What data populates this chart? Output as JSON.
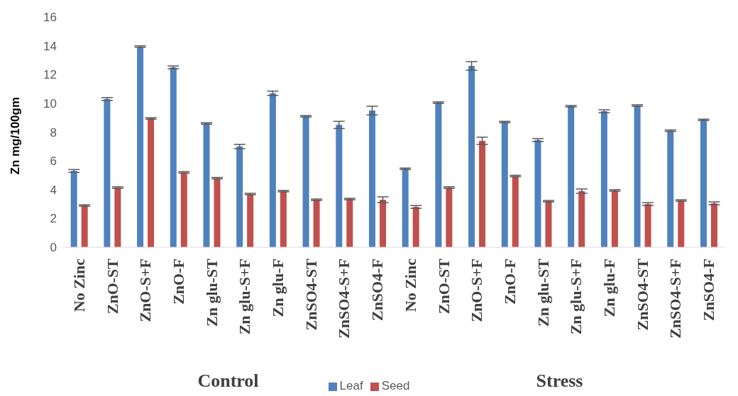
{
  "chart_data": {
    "type": "bar",
    "ylabel": "Zn mg/100gm",
    "categories": [
      "No Zinc",
      "ZnO-ST",
      "ZnO-S+F",
      "ZnO-F",
      "Zn glu-ST",
      "Zn glu-S+F",
      "Zn glu-F",
      "ZnSO4-ST",
      "ZnSO4-S+F",
      "ZnSO4-F",
      "No Zinc",
      "ZnO-ST",
      "ZnO-S+F",
      "ZnO-F",
      "Zn glu-ST",
      "Zn glu-S+F",
      "Zn glu-F",
      "ZnSO4-ST",
      "ZnSO4-S+F",
      "ZnSO4-F"
    ],
    "series": [
      {
        "name": "Leaf",
        "color": "#4f81bd",
        "values": [
          5.3,
          10.3,
          13.95,
          12.5,
          8.6,
          7.0,
          10.7,
          9.1,
          8.5,
          9.5,
          5.45,
          10.05,
          12.6,
          8.7,
          7.45,
          9.8,
          9.45,
          9.85,
          8.1,
          8.85
        ],
        "errors": [
          0.1,
          0.1,
          0.05,
          0.1,
          0.05,
          0.15,
          0.15,
          0.05,
          0.25,
          0.3,
          0.05,
          0.05,
          0.3,
          0.05,
          0.1,
          0.05,
          0.1,
          0.05,
          0.05,
          0.05
        ]
      },
      {
        "name": "Seed",
        "color": "#c0504d",
        "values": [
          2.9,
          4.15,
          8.95,
          5.2,
          4.8,
          3.7,
          3.9,
          3.3,
          3.35,
          3.3,
          2.8,
          4.15,
          7.4,
          4.95,
          3.2,
          3.9,
          3.95,
          3.0,
          3.25,
          3.05
        ],
        "errors": [
          0.05,
          0.05,
          0.05,
          0.05,
          0.05,
          0.05,
          0.05,
          0.05,
          0.05,
          0.2,
          0.1,
          0.05,
          0.25,
          0.05,
          0.05,
          0.15,
          0.05,
          0.1,
          0.05,
          0.1
        ]
      }
    ],
    "annotations": [
      "Control",
      "Stress"
    ],
    "ylim": [
      0,
      16
    ],
    "yticks": [
      0,
      2,
      4,
      6,
      8,
      10,
      12,
      14,
      16
    ],
    "legend": "bottom"
  }
}
